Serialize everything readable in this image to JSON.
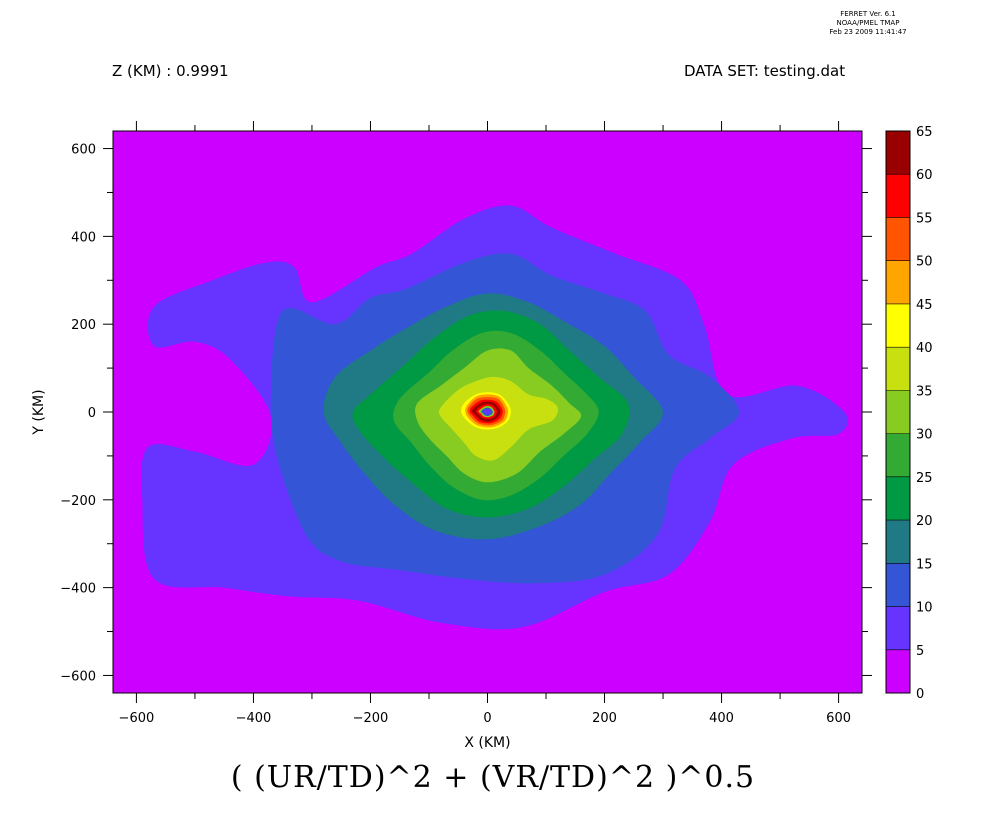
{
  "header": {
    "left": "Z (KM) : 0.9991",
    "right": "DATA SET: testing.dat",
    "ferret_lines": [
      "FERRET Ver. 6.1",
      "NOAA/PMEL TMAP",
      "Feb 23 2009 11:41:47"
    ]
  },
  "chart_data": {
    "type": "heatmap",
    "title": "( (UR/TD)^2 + (VR/TD)^2 )^0.5",
    "xlabel": "X (KM)",
    "ylabel": "Y (KM)",
    "xlim": [
      -640,
      640
    ],
    "ylim": [
      -640,
      640
    ],
    "x_ticks": [
      -600,
      -400,
      -200,
      0,
      200,
      400,
      600
    ],
    "x_tick_labels": [
      "−600",
      "−400",
      "−200",
      "0",
      "200",
      "400",
      "600"
    ],
    "y_ticks": [
      -600,
      -400,
      -200,
      0,
      200,
      400,
      600
    ],
    "y_tick_labels": [
      "−600",
      "−400",
      "−200",
      "0",
      "200",
      "400",
      "600"
    ],
    "levels": [
      0,
      5,
      10,
      15,
      20,
      25,
      30,
      35,
      40,
      45,
      50,
      55,
      60,
      65
    ],
    "level_labels": [
      "0",
      "5",
      "10",
      "15",
      "20",
      "25",
      "30",
      "35",
      "40",
      "45",
      "50",
      "55",
      "60",
      "65"
    ],
    "colors": [
      "#cc00ff",
      "#6633ff",
      "#3355d6",
      "#1f7a86",
      "#009944",
      "#33aa33",
      "#88cc22",
      "#c8e010",
      "#ffff00",
      "#ffa500",
      "#ff5500",
      "#ff0000",
      "#990000"
    ],
    "grid": false,
    "field": {
      "contours_xy": [
        {
          "level": 5,
          "points": [
            [
              -570,
              240
            ],
            [
              -470,
              300
            ],
            [
              -380,
              340
            ],
            [
              -330,
              330
            ],
            [
              -300,
              250
            ],
            [
              -190,
              330
            ],
            [
              -130,
              360
            ],
            [
              -40,
              440
            ],
            [
              40,
              470
            ],
            [
              110,
              420
            ],
            [
              220,
              360
            ],
            [
              330,
              300
            ],
            [
              370,
              200
            ],
            [
              410,
              40
            ],
            [
              530,
              60
            ],
            [
              610,
              0
            ],
            [
              600,
              -50
            ],
            [
              520,
              -60
            ],
            [
              420,
              -120
            ],
            [
              380,
              -250
            ],
            [
              310,
              -370
            ],
            [
              200,
              -410
            ],
            [
              60,
              -490
            ],
            [
              -80,
              -480
            ],
            [
              -220,
              -430
            ],
            [
              -340,
              -420
            ],
            [
              -450,
              -400
            ],
            [
              -570,
              -380
            ],
            [
              -590,
              -200
            ],
            [
              -580,
              -80
            ],
            [
              -500,
              -90
            ],
            [
              -400,
              -120
            ],
            [
              -370,
              -10
            ],
            [
              -440,
              120
            ],
            [
              -500,
              160
            ],
            [
              -570,
              150
            ]
          ]
        },
        {
          "level": 10,
          "points": [
            [
              -350,
              230
            ],
            [
              -260,
              200
            ],
            [
              -200,
              260
            ],
            [
              -140,
              280
            ],
            [
              -40,
              340
            ],
            [
              40,
              360
            ],
            [
              110,
              310
            ],
            [
              200,
              270
            ],
            [
              270,
              230
            ],
            [
              310,
              130
            ],
            [
              380,
              80
            ],
            [
              430,
              0
            ],
            [
              380,
              -60
            ],
            [
              320,
              -130
            ],
            [
              290,
              -280
            ],
            [
              200,
              -370
            ],
            [
              80,
              -390
            ],
            [
              -40,
              -380
            ],
            [
              -150,
              -360
            ],
            [
              -250,
              -340
            ],
            [
              -310,
              -280
            ],
            [
              -360,
              -100
            ],
            [
              -370,
              40
            ]
          ]
        },
        {
          "level": 15,
          "points": [
            [
              -260,
              80
            ],
            [
              -200,
              140
            ],
            [
              -140,
              190
            ],
            [
              -70,
              240
            ],
            [
              0,
              270
            ],
            [
              70,
              250
            ],
            [
              140,
              200
            ],
            [
              200,
              150
            ],
            [
              250,
              80
            ],
            [
              300,
              0
            ],
            [
              260,
              -70
            ],
            [
              210,
              -140
            ],
            [
              160,
              -210
            ],
            [
              90,
              -260
            ],
            [
              0,
              -290
            ],
            [
              -90,
              -270
            ],
            [
              -160,
              -210
            ],
            [
              -210,
              -140
            ],
            [
              -250,
              -70
            ],
            [
              -280,
              0
            ]
          ]
        },
        {
          "level": 20,
          "points": [
            [
              -200,
              40
            ],
            [
              -140,
              110
            ],
            [
              -90,
              170
            ],
            [
              -30,
              220
            ],
            [
              30,
              230
            ],
            [
              90,
              200
            ],
            [
              140,
              140
            ],
            [
              190,
              80
            ],
            [
              240,
              20
            ],
            [
              230,
              -50
            ],
            [
              180,
              -110
            ],
            [
              130,
              -170
            ],
            [
              70,
              -220
            ],
            [
              0,
              -240
            ],
            [
              -70,
              -220
            ],
            [
              -130,
              -160
            ],
            [
              -180,
              -100
            ],
            [
              -220,
              -40
            ],
            [
              -230,
              0
            ]
          ]
        },
        {
          "level": 25,
          "points": [
            [
              -150,
              30
            ],
            [
              -100,
              90
            ],
            [
              -60,
              140
            ],
            [
              -10,
              180
            ],
            [
              40,
              180
            ],
            [
              90,
              140
            ],
            [
              130,
              90
            ],
            [
              170,
              40
            ],
            [
              190,
              0
            ],
            [
              170,
              -50
            ],
            [
              130,
              -100
            ],
            [
              90,
              -150
            ],
            [
              40,
              -190
            ],
            [
              -10,
              -200
            ],
            [
              -60,
              -170
            ],
            [
              -100,
              -120
            ],
            [
              -130,
              -70
            ],
            [
              -160,
              -20
            ]
          ]
        },
        {
          "level": 30,
          "points": [
            [
              -120,
              20
            ],
            [
              -80,
              60
            ],
            [
              -40,
              100
            ],
            [
              0,
              140
            ],
            [
              40,
              140
            ],
            [
              70,
              100
            ],
            [
              110,
              60
            ],
            [
              140,
              20
            ],
            [
              160,
              -10
            ],
            [
              130,
              -50
            ],
            [
              90,
              -90
            ],
            [
              50,
              -140
            ],
            [
              0,
              -160
            ],
            [
              -40,
              -140
            ],
            [
              -70,
              -100
            ],
            [
              -100,
              -60
            ],
            [
              -120,
              -20
            ]
          ]
        },
        {
          "level": 35,
          "points": [
            [
              -80,
              10
            ],
            [
              -50,
              50
            ],
            [
              -20,
              70
            ],
            [
              10,
              80
            ],
            [
              40,
              70
            ],
            [
              70,
              40
            ],
            [
              100,
              30
            ],
            [
              120,
              10
            ],
            [
              110,
              -20
            ],
            [
              70,
              -40
            ],
            [
              40,
              -80
            ],
            [
              10,
              -110
            ],
            [
              -20,
              -100
            ],
            [
              -40,
              -70
            ],
            [
              -60,
              -40
            ],
            [
              -80,
              -10
            ]
          ]
        },
        {
          "level": 40,
          "points": [
            [
              -40,
              20
            ],
            [
              -20,
              40
            ],
            [
              0,
              45
            ],
            [
              20,
              40
            ],
            [
              35,
              20
            ],
            [
              40,
              0
            ],
            [
              35,
              -20
            ],
            [
              20,
              -35
            ],
            [
              0,
              -40
            ],
            [
              -20,
              -35
            ],
            [
              -35,
              -20
            ],
            [
              -45,
              0
            ]
          ]
        },
        {
          "level": 45,
          "points": [
            [
              -35,
              15
            ],
            [
              -20,
              35
            ],
            [
              0,
              40
            ],
            [
              20,
              35
            ],
            [
              32,
              15
            ],
            [
              35,
              0
            ],
            [
              30,
              -20
            ],
            [
              15,
              -32
            ],
            [
              0,
              -35
            ],
            [
              -18,
              -30
            ],
            [
              -32,
              -15
            ],
            [
              -38,
              0
            ]
          ]
        },
        {
          "level": 50,
          "points": [
            [
              -32,
              12
            ],
            [
              -18,
              30
            ],
            [
              0,
              34
            ],
            [
              18,
              30
            ],
            [
              28,
              12
            ],
            [
              30,
              0
            ],
            [
              26,
              -18
            ],
            [
              12,
              -28
            ],
            [
              0,
              -30
            ],
            [
              -16,
              -26
            ],
            [
              -28,
              -12
            ],
            [
              -34,
              0
            ]
          ]
        },
        {
          "level": 55,
          "points": [
            [
              -28,
              10
            ],
            [
              -14,
              25
            ],
            [
              0,
              28
            ],
            [
              15,
              24
            ],
            [
              24,
              10
            ],
            [
              26,
              0
            ],
            [
              22,
              -14
            ],
            [
              10,
              -24
            ],
            [
              0,
              -26
            ],
            [
              -14,
              -22
            ],
            [
              -24,
              -10
            ],
            [
              -30,
              0
            ]
          ]
        },
        {
          "level": 60,
          "points": [
            [
              -24,
              8
            ],
            [
              -12,
              20
            ],
            [
              0,
              24
            ],
            [
              12,
              20
            ],
            [
              20,
              8
            ],
            [
              22,
              0
            ],
            [
              18,
              -12
            ],
            [
              8,
              -20
            ],
            [
              0,
              -22
            ],
            [
              -12,
              -18
            ],
            [
              -20,
              -8
            ],
            [
              -26,
              0
            ]
          ]
        },
        {
          "level": 55,
          "points": [
            [
              -18,
              6
            ],
            [
              -9,
              15
            ],
            [
              0,
              18
            ],
            [
              9,
              15
            ],
            [
              15,
              6
            ],
            [
              16,
              0
            ],
            [
              13,
              -9
            ],
            [
              6,
              -15
            ],
            [
              0,
              -16
            ],
            [
              -9,
              -13
            ],
            [
              -15,
              -6
            ],
            [
              -19,
              0
            ]
          ]
        },
        {
          "level": 30,
          "points": [
            [
              -14,
              4
            ],
            [
              -7,
              11
            ],
            [
              0,
              14
            ],
            [
              7,
              11
            ],
            [
              11,
              4
            ],
            [
              12,
              0
            ],
            [
              10,
              -7
            ],
            [
              4,
              -11
            ],
            [
              0,
              -12
            ],
            [
              -7,
              -10
            ],
            [
              -11,
              -4
            ],
            [
              -15,
              0
            ]
          ]
        },
        {
          "level": 10,
          "points": [
            [
              -10,
              3
            ],
            [
              -5,
              8
            ],
            [
              0,
              10
            ],
            [
              5,
              8
            ],
            [
              8,
              3
            ],
            [
              9,
              0
            ],
            [
              7,
              -5
            ],
            [
              3,
              -8
            ],
            [
              0,
              -9
            ],
            [
              -5,
              -7
            ],
            [
              -8,
              -3
            ],
            [
              -11,
              0
            ]
          ]
        },
        {
          "level": 5,
          "points": [
            [
              -6,
              2
            ],
            [
              -3,
              5
            ],
            [
              0,
              6
            ],
            [
              3,
              5
            ],
            [
              5,
              2
            ],
            [
              5,
              0
            ],
            [
              4,
              -3
            ],
            [
              2,
              -5
            ],
            [
              0,
              -5
            ],
            [
              -3,
              -4
            ],
            [
              -5,
              -2
            ],
            [
              -6,
              0
            ]
          ]
        }
      ]
    }
  }
}
